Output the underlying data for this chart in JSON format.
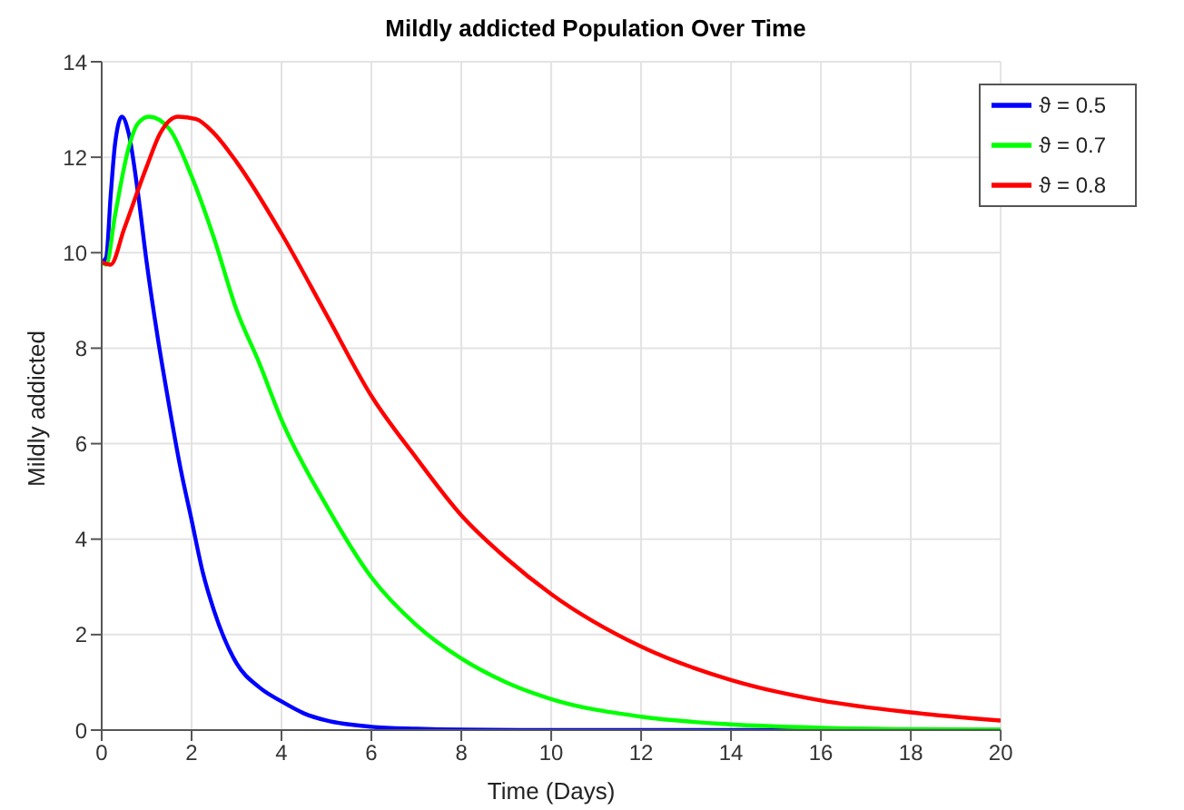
{
  "chart_data": {
    "type": "line",
    "title": "Mildly addicted Population Over Time",
    "xlabel": "Time (Days)",
    "ylabel": "Mildly addicted",
    "xlim": [
      0,
      20
    ],
    "xticks": [
      0,
      2,
      4,
      6,
      8,
      10,
      12,
      14,
      16,
      18,
      20
    ],
    "ylim": [
      0,
      14
    ],
    "yticks": [
      0,
      2,
      4,
      6,
      8,
      10,
      12,
      14
    ],
    "grid": true,
    "legend": "top right",
    "marker": "none",
    "line_style": "solid",
    "series": [
      {
        "name": "ϑ = 0.5",
        "color": "#0000ff",
        "x": [
          0,
          0.1,
          0.2,
          0.3,
          0.45,
          0.6,
          0.8,
          1,
          1.25,
          1.5,
          1.75,
          2,
          2.25,
          2.5,
          3,
          3.5,
          4,
          4.5,
          5,
          6,
          7,
          8,
          10,
          12,
          14,
          16,
          18,
          20
        ],
        "values": [
          9.8,
          9.9,
          11.2,
          12.3,
          12.85,
          12.5,
          11.3,
          9.8,
          8.2,
          6.8,
          5.5,
          4.4,
          3.3,
          2.5,
          1.4,
          0.9,
          0.6,
          0.35,
          0.2,
          0.07,
          0.03,
          0.01,
          0,
          0,
          0,
          0,
          0,
          0
        ]
      },
      {
        "name": "ϑ = 0.7",
        "color": "#00ff00",
        "x": [
          0,
          0.1,
          0.3,
          0.6,
          0.8,
          1.05,
          1.5,
          2,
          2.5,
          3,
          3.5,
          4,
          5,
          6,
          7,
          8,
          9,
          10,
          12,
          14,
          16,
          18,
          20
        ],
        "values": [
          9.8,
          9.75,
          10.8,
          12.2,
          12.7,
          12.85,
          12.6,
          11.6,
          10.3,
          8.8,
          7.7,
          6.5,
          4.7,
          3.2,
          2.2,
          1.5,
          1.0,
          0.65,
          0.28,
          0.12,
          0.05,
          0.02,
          0.01
        ]
      },
      {
        "name": "ϑ = 0.8",
        "color": "#ff0000",
        "x": [
          0,
          0.2,
          0.5,
          1,
          1.3,
          1.7,
          2.1,
          2.5,
          3,
          4,
          5,
          6,
          7,
          8,
          9,
          10,
          12,
          14,
          16,
          18,
          20
        ],
        "values": [
          9.8,
          9.75,
          10.5,
          11.8,
          12.5,
          12.85,
          12.8,
          12.5,
          11.9,
          10.4,
          8.7,
          7.0,
          5.7,
          4.5,
          3.6,
          2.85,
          1.75,
          1.05,
          0.62,
          0.37,
          0.2
        ]
      }
    ]
  }
}
